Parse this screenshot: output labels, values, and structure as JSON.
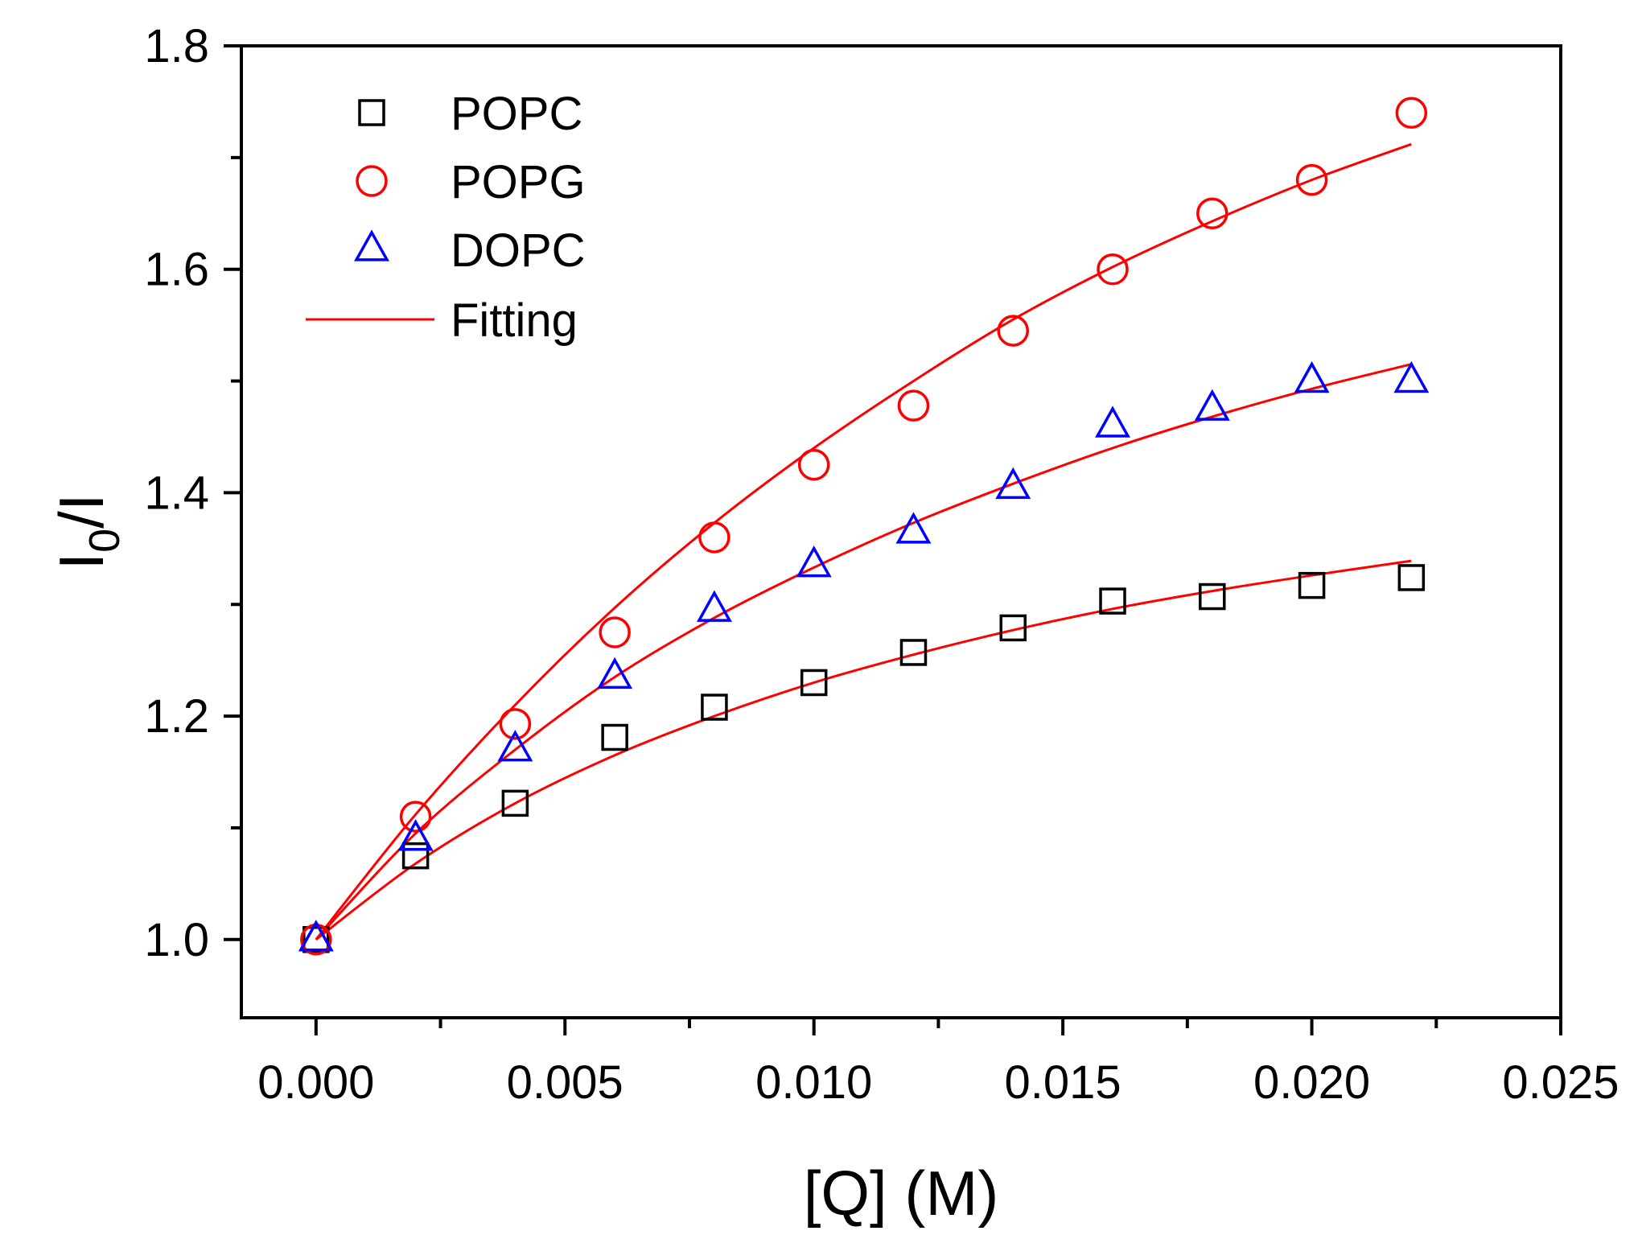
{
  "chart_data": {
    "type": "scatter",
    "xlabel": "[Q] (M)",
    "ylabel_main": "I",
    "ylabel_sub": "0",
    "ylabel_tail": "/I",
    "xlim": [
      -0.0015,
      0.025
    ],
    "ylim": [
      0.93,
      1.8
    ],
    "xticks": [
      0.0,
      0.005,
      0.01,
      0.015,
      0.02,
      0.025
    ],
    "xtick_labels": [
      "0.000",
      "0.005",
      "0.010",
      "0.015",
      "0.020",
      "0.025"
    ],
    "xminor_ticks": [
      0.0025,
      0.0075,
      0.0125,
      0.0175,
      0.0225
    ],
    "yticks": [
      1.0,
      1.2,
      1.4,
      1.6,
      1.8
    ],
    "ytick_labels": [
      "1.0",
      "1.2",
      "1.4",
      "1.6",
      "1.8"
    ],
    "yminor_ticks": [
      1.1,
      1.3,
      1.5,
      1.7
    ],
    "grid": false,
    "legend_position": "top-left",
    "series": [
      {
        "name": "POPC",
        "marker": "square",
        "color": "#000000",
        "x": [
          0.0,
          0.002,
          0.004,
          0.006,
          0.008,
          0.01,
          0.012,
          0.014,
          0.016,
          0.018,
          0.02,
          0.022
        ],
        "y": [
          1.0,
          1.075,
          1.122,
          1.181,
          1.208,
          1.23,
          1.257,
          1.279,
          1.303,
          1.307,
          1.317,
          1.324
        ]
      },
      {
        "name": "POPG",
        "marker": "circle",
        "color": "#ff0000",
        "x": [
          0.0,
          0.002,
          0.004,
          0.006,
          0.008,
          0.01,
          0.012,
          0.014,
          0.016,
          0.018,
          0.02,
          0.022
        ],
        "y": [
          1.0,
          1.11,
          1.193,
          1.275,
          1.36,
          1.425,
          1.478,
          1.545,
          1.6,
          1.65,
          1.68,
          1.74
        ]
      },
      {
        "name": "DOPC",
        "marker": "triangle",
        "color": "#0000ff",
        "x": [
          0.0,
          0.002,
          0.004,
          0.006,
          0.008,
          0.01,
          0.012,
          0.014,
          0.016,
          0.018,
          0.02,
          0.022
        ],
        "y": [
          1.0,
          1.09,
          1.17,
          1.235,
          1.295,
          1.335,
          1.365,
          1.405,
          1.46,
          1.475,
          1.5,
          1.5
        ]
      }
    ],
    "fits": [
      {
        "legend_name": "Fitting",
        "for": "POPC",
        "color": "#ff0000",
        "x": [
          0.0,
          0.002,
          0.004,
          0.006,
          0.008,
          0.01,
          0.012,
          0.014,
          0.016,
          0.018,
          0.02,
          0.022
        ],
        "y": [
          1.0,
          1.068,
          1.122,
          1.165,
          1.2,
          1.23,
          1.255,
          1.277,
          1.296,
          1.312,
          1.326,
          1.339
        ]
      },
      {
        "for": "POPG",
        "color": "#ff0000",
        "x": [
          0.0,
          0.002,
          0.004,
          0.006,
          0.008,
          0.01,
          0.012,
          0.014,
          0.016,
          0.018,
          0.02,
          0.022
        ],
        "y": [
          1.0,
          1.112,
          1.21,
          1.297,
          1.373,
          1.44,
          1.5,
          1.555,
          1.602,
          1.643,
          1.68,
          1.712
        ]
      },
      {
        "for": "DOPC",
        "color": "#ff0000",
        "x": [
          0.0,
          0.002,
          0.004,
          0.006,
          0.008,
          0.01,
          0.012,
          0.014,
          0.016,
          0.018,
          0.02,
          0.022
        ],
        "y": [
          1.0,
          1.095,
          1.17,
          1.235,
          1.288,
          1.333,
          1.373,
          1.408,
          1.44,
          1.468,
          1.493,
          1.515
        ]
      }
    ]
  }
}
